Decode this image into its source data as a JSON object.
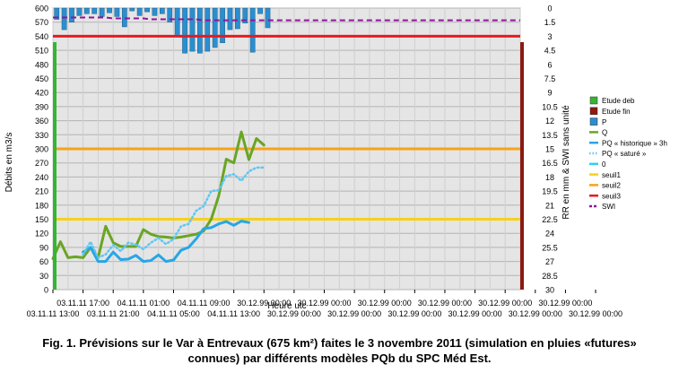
{
  "chart_data": {
    "type": "line",
    "title": "",
    "xlabel": "Heure utc",
    "ylabel_left": "Débits en m3/s",
    "ylabel_right": "RR en mm & SWI sans unité",
    "left_axis": {
      "min": 0,
      "max": 600,
      "step": 30,
      "ticks": [
        "0",
        "30",
        "60",
        "90",
        "120",
        "150",
        "180",
        "210",
        "240",
        "270",
        "300",
        "330",
        "360",
        "390",
        "420",
        "450",
        "480",
        "510",
        "540",
        "570",
        "600"
      ]
    },
    "right_axis": {
      "min": 0,
      "max": 30,
      "inverted": true,
      "ticks": [
        "0",
        "1.5",
        "3",
        "4.5",
        "6",
        "7.5",
        "9",
        "10.5",
        "12",
        "13.5",
        "15",
        "16.5",
        "18",
        "19.5",
        "21",
        "22.5",
        "24",
        "25.5",
        "27",
        "28.5",
        "30"
      ]
    },
    "x_ticks": [
      {
        "label": "03.11.11 13:00",
        "row": 2
      },
      {
        "label": "03.11.11 17:00",
        "row": 1
      },
      {
        "label": "03.11.11 21:00",
        "row": 2
      },
      {
        "label": "04.11.11 01:00",
        "row": 1
      },
      {
        "label": "04.11.11 05:00",
        "row": 2
      },
      {
        "label": "04.11.11 09:00",
        "row": 1
      },
      {
        "label": "04.11.11 13:00",
        "row": 2
      },
      {
        "label": "30.12.99 00:00",
        "row": 1
      },
      {
        "label": "30.12.99 00:00",
        "row": 2
      },
      {
        "label": "30.12.99 00:00",
        "row": 1
      },
      {
        "label": "30.12.99 00:00",
        "row": 2
      },
      {
        "label": "30.12.99 00:00",
        "row": 1
      },
      {
        "label": "30.12.99 00:00",
        "row": 2
      },
      {
        "label": "30.12.99 00:00",
        "row": 1
      },
      {
        "label": "30.12.99 00:00",
        "row": 2
      },
      {
        "label": "30.12.99 00:00",
        "row": 1
      },
      {
        "label": "30.12.99 00:00",
        "row": 2
      },
      {
        "label": "30.12.99 00:00",
        "row": 1
      },
      {
        "label": "30.12.99 00:00",
        "row": 2
      }
    ],
    "series": [
      {
        "name": "Q",
        "type": "line",
        "color": "#6aa524",
        "axis": "left",
        "x": [
          0,
          1,
          2,
          3,
          4,
          5,
          6,
          7,
          8,
          9,
          10,
          11,
          12,
          13,
          14,
          15,
          16,
          17,
          18,
          19,
          20,
          21,
          22,
          23,
          24,
          25,
          26,
          27,
          28,
          29
        ],
        "values": [
          66,
          102,
          68,
          70,
          68,
          90,
          68,
          135,
          100,
          92,
          92,
          92,
          128,
          118,
          113,
          112,
          110,
          112,
          115,
          118,
          125,
          150,
          200,
          278,
          270,
          336,
          277,
          322,
          308,
          null
        ]
      },
      {
        "name": "PQ « historique » 3h",
        "type": "line",
        "color": "#27a6e6",
        "axis": "left",
        "x": [
          0,
          1,
          2,
          3,
          4,
          5,
          6,
          7,
          8,
          9,
          10,
          11,
          12,
          13,
          14,
          15,
          16,
          17,
          18,
          19,
          20,
          21,
          22,
          23,
          24,
          25,
          26,
          27,
          28,
          29
        ],
        "values": [
          null,
          null,
          null,
          null,
          80,
          90,
          60,
          60,
          80,
          64,
          65,
          73,
          60,
          62,
          74,
          60,
          63,
          84,
          90,
          108,
          130,
          132,
          140,
          145,
          137,
          146,
          143,
          null,
          null,
          null
        ]
      },
      {
        "name": "PQ « saturé »",
        "type": "dotted",
        "color": "#5fc7f2",
        "axis": "left",
        "x": [
          0,
          1,
          2,
          3,
          4,
          5,
          6,
          7,
          8,
          9,
          10,
          11,
          12,
          13,
          14,
          15,
          16,
          17,
          18,
          19,
          20,
          21,
          22,
          23,
          24,
          25,
          26,
          27,
          28,
          29
        ],
        "values": [
          null,
          null,
          null,
          null,
          75,
          102,
          68,
          75,
          95,
          82,
          100,
          96,
          86,
          100,
          110,
          97,
          108,
          135,
          140,
          168,
          178,
          210,
          212,
          242,
          246,
          232,
          252,
          260,
          260,
          null
        ]
      },
      {
        "name": "seuil2",
        "type": "hline",
        "color": "#f7a21b",
        "axis": "left",
        "value": 300
      },
      {
        "name": "seuil1",
        "type": "hline",
        "color": "#f4d21a",
        "axis": "left",
        "value": 150
      },
      {
        "name": "seuil3",
        "type": "hline",
        "color": "#e8191f",
        "axis": "right",
        "value": 3
      },
      {
        "name": "SWI",
        "type": "dashed",
        "color": "#91139b",
        "axis": "right",
        "x": [
          0,
          1,
          2,
          3,
          4,
          5,
          6,
          7,
          8,
          9,
          10,
          11,
          12,
          13,
          14,
          15,
          16,
          17,
          18,
          19,
          20,
          21,
          22,
          23,
          24,
          25,
          26,
          27,
          28,
          29,
          30,
          31,
          32,
          33,
          34,
          35,
          36,
          37,
          38,
          39,
          40,
          41,
          42,
          43,
          44,
          45,
          46,
          47,
          48,
          49,
          50,
          51,
          52,
          53,
          54,
          55,
          56,
          57,
          58,
          59,
          60,
          61,
          62
        ],
        "values": [
          1.0,
          1.0,
          1.0,
          1.0,
          1.0,
          1.0,
          1.0,
          1.0,
          1.1,
          1.1,
          1.1,
          1.1,
          1.1,
          1.2,
          1.2,
          1.2,
          1.2,
          1.2,
          1.2,
          1.2,
          1.3,
          1.3,
          1.3,
          1.3,
          1.3,
          1.3,
          1.3,
          1.3,
          1.3,
          1.3,
          1.3,
          1.3,
          1.3,
          1.3,
          1.3,
          1.3,
          1.3,
          1.3,
          1.3,
          1.3,
          1.3,
          1.3,
          1.3,
          1.3,
          1.3,
          1.3,
          1.3,
          1.3,
          1.3,
          1.3,
          1.3,
          1.3,
          1.3,
          1.3,
          1.3,
          1.3,
          1.3,
          1.3,
          1.3,
          1.3,
          1.3,
          1.3,
          1.3
        ]
      },
      {
        "name": "P",
        "type": "bar",
        "color": "#2a8fd0",
        "axis": "right",
        "x": [
          0,
          1,
          2,
          3,
          4,
          5,
          6,
          7,
          8,
          9,
          10,
          11,
          12,
          13,
          14,
          15,
          16,
          17,
          18,
          19,
          20,
          21,
          22,
          23,
          24,
          25,
          26,
          27,
          28,
          29
        ],
        "values": [
          1.2,
          2.3,
          1.5,
          0.8,
          0.6,
          0.6,
          0.9,
          0.5,
          0.9,
          2.0,
          0.3,
          0.8,
          0.4,
          0.8,
          0.6,
          1.5,
          2.9,
          4.8,
          4.6,
          4.8,
          4.6,
          4.2,
          3.7,
          2.3,
          2.2,
          1.6,
          4.7,
          0.6,
          2.1,
          null
        ]
      },
      {
        "name": "Etude deb",
        "type": "vline",
        "color": "#35b534",
        "x": 0
      },
      {
        "name": "Etude fin",
        "type": "vline",
        "color": "#8b1a10",
        "x": 62
      }
    ],
    "legend_position": "right",
    "legend": [
      {
        "label": "Etude deb",
        "kind": "box",
        "color": "#35b534"
      },
      {
        "label": "Etude fin",
        "kind": "box",
        "color": "#8b1a10"
      },
      {
        "label": "P",
        "kind": "box",
        "color": "#2a8fd0"
      },
      {
        "label": "Q",
        "kind": "line",
        "color": "#6aa524"
      },
      {
        "label": "PQ « historique » 3h",
        "kind": "line",
        "color": "#27a6e6"
      },
      {
        "label": "PQ « saturé »",
        "kind": "dotted",
        "color": "#5fc7f2"
      },
      {
        "label": "0",
        "kind": "line",
        "color": "#2fd0f0"
      },
      {
        "label": "seuil1",
        "kind": "line",
        "color": "#f4d21a"
      },
      {
        "label": "seuil2",
        "kind": "line",
        "color": "#f7a21b"
      },
      {
        "label": "seuil3",
        "kind": "line",
        "color": "#e8191f"
      },
      {
        "label": "SWI",
        "kind": "dashed",
        "color": "#91139b"
      }
    ],
    "grid": true,
    "plot_background": "#e5e5e5"
  },
  "caption": {
    "line1": "Fig. 1. Prévisions sur le Var à Entrevaux (675 km²) faites le 3 novembre 2011 (simulation en pluies «futures»",
    "line2": "connues) par différents modèles PQb du SPC Méd Est."
  }
}
